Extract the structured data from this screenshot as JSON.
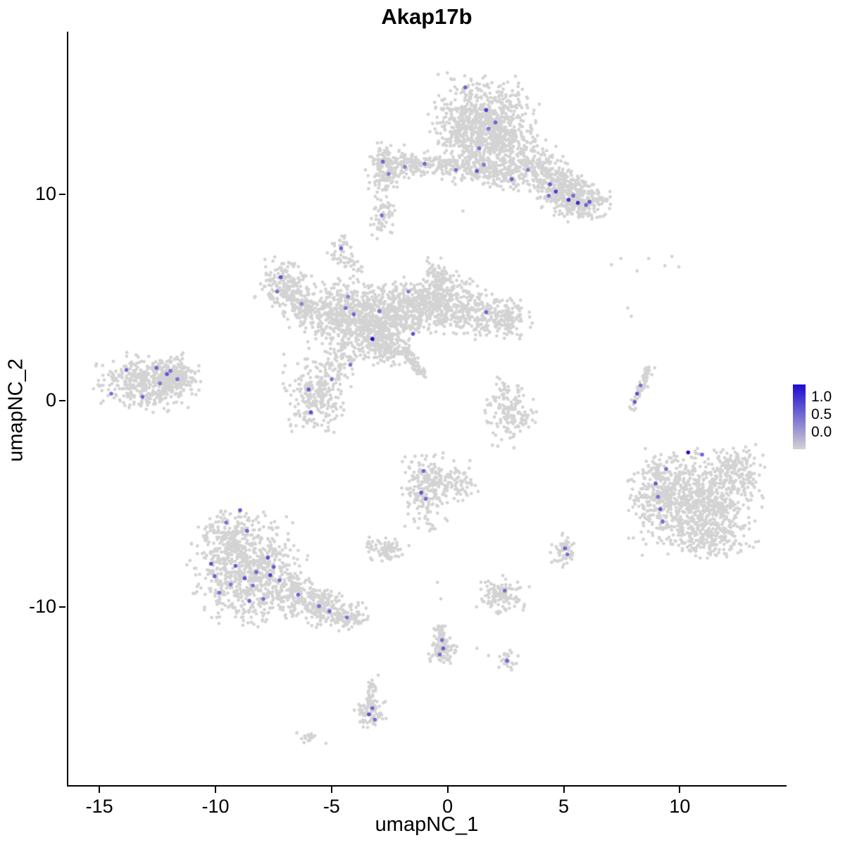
{
  "chart_data": {
    "type": "scatter",
    "title": "Akap17b",
    "xlabel": "umapNC_1",
    "ylabel": "umapNC_2",
    "x_ticks": [
      -15,
      -10,
      -5,
      0,
      5,
      10
    ],
    "y_ticks": [
      10,
      0,
      -10
    ],
    "x_range": [
      -16.4,
      14.6
    ],
    "y_range": [
      -18.7,
      17.9
    ],
    "grid": false,
    "background": "#ffffff",
    "axis_color": "#000000",
    "point_color_default": "#d3d3d3",
    "colorbar": {
      "low_color": "#d3d3d3",
      "high_color": "#1d0bd1",
      "labels": [
        {
          "text": "1.0",
          "f": 0.2
        },
        {
          "text": "0.5",
          "f": 0.47
        },
        {
          "text": "0.0",
          "f": 0.74
        }
      ]
    },
    "clusters": [
      {
        "c": [
          1.5,
          13.7
        ],
        "s": [
          1.05,
          0.95
        ],
        "n": 650
      },
      {
        "c": [
          2.5,
          12.4
        ],
        "s": [
          0.75,
          0.65
        ],
        "n": 220
      },
      {
        "c": [
          0.6,
          12.9
        ],
        "s": [
          0.5,
          0.6
        ],
        "n": 120
      },
      {
        "c": [
          3.8,
          11.3
        ],
        "s": [
          0.55,
          0.5
        ],
        "n": 150
      },
      {
        "c": [
          4.8,
          10.4
        ],
        "s": [
          0.55,
          0.5
        ],
        "n": 200
      },
      {
        "c": [
          5.6,
          9.7
        ],
        "s": [
          0.6,
          0.45
        ],
        "n": 260
      },
      {
        "c": [
          -2.7,
          11.3
        ],
        "s": [
          0.35,
          0.55
        ],
        "n": 140
      },
      {
        "c": [
          -1.8,
          11.45
        ],
        "s": [
          0.5,
          0.3
        ],
        "n": 90
      },
      {
        "c": [
          -0.8,
          11.5
        ],
        "s": [
          0.45,
          0.28
        ],
        "n": 60
      },
      {
        "c": [
          0.3,
          11.25
        ],
        "s": [
          0.5,
          0.35
        ],
        "n": 70
      },
      {
        "c": [
          1.4,
          11.3
        ],
        "s": [
          0.5,
          0.4
        ],
        "n": 110
      },
      {
        "c": [
          2.4,
          11.0
        ],
        "s": [
          0.45,
          0.4
        ],
        "n": 90
      },
      {
        "c": [
          -2.85,
          8.8
        ],
        "s": [
          0.28,
          0.5
        ],
        "n": 55
      },
      {
        "c": [
          -4.6,
          7.3
        ],
        "s": [
          0.3,
          0.38
        ],
        "n": 45
      },
      {
        "c": [
          -7.1,
          5.6
        ],
        "s": [
          0.55,
          0.6
        ],
        "n": 170
      },
      {
        "c": [
          -6.3,
          4.6
        ],
        "s": [
          0.5,
          0.5
        ],
        "n": 110
      },
      {
        "c": [
          -4.9,
          4.3
        ],
        "s": [
          0.75,
          0.75
        ],
        "n": 280
      },
      {
        "c": [
          -3.4,
          3.9
        ],
        "s": [
          0.9,
          0.85
        ],
        "n": 480
      },
      {
        "c": [
          -1.6,
          4.6
        ],
        "s": [
          0.85,
          0.6
        ],
        "n": 330
      },
      {
        "c": [
          -0.2,
          4.8
        ],
        "s": [
          0.8,
          0.6
        ],
        "n": 240
      },
      {
        "c": [
          -0.5,
          5.9
        ],
        "s": [
          0.4,
          0.45
        ],
        "n": 90
      },
      {
        "c": [
          1.4,
          4.1
        ],
        "s": [
          0.8,
          0.5
        ],
        "n": 200
      },
      {
        "c": [
          2.6,
          3.9
        ],
        "s": [
          0.45,
          0.45
        ],
        "n": 90
      },
      {
        "c": [
          -2.9,
          2.8
        ],
        "s": [
          0.6,
          0.5
        ],
        "n": 190
      },
      {
        "c": [
          -5.7,
          0.3
        ],
        "s": [
          0.65,
          0.85
        ],
        "n": 260
      },
      {
        "c": [
          -4.7,
          1.9
        ],
        "s": [
          0.4,
          0.55
        ],
        "n": 70
      },
      {
        "c": [
          -13.0,
          0.9
        ],
        "s": [
          1.0,
          0.62
        ],
        "n": 420
      },
      {
        "c": [
          -11.9,
          1.2
        ],
        "s": [
          0.45,
          0.4
        ],
        "n": 160
      },
      {
        "c": [
          2.6,
          -0.6
        ],
        "s": [
          0.5,
          0.75
        ],
        "n": 150
      },
      {
        "c": [
          10.6,
          -4.9
        ],
        "s": [
          1.25,
          1.15
        ],
        "n": 850
      },
      {
        "c": [
          9.0,
          -4.3
        ],
        "s": [
          0.4,
          0.8
        ],
        "n": 130
      },
      {
        "c": [
          12.3,
          -3.4
        ],
        "s": [
          0.6,
          0.55
        ],
        "n": 140
      },
      {
        "c": [
          11.3,
          -6.7
        ],
        "s": [
          0.7,
          0.45
        ],
        "n": 120
      },
      {
        "c": [
          -8.6,
          -8.3
        ],
        "s": [
          1.15,
          1.15
        ],
        "n": 760
      },
      {
        "c": [
          -9.3,
          -6.5
        ],
        "s": [
          0.6,
          0.6
        ],
        "n": 150
      },
      {
        "c": [
          -6.4,
          -9.5
        ],
        "s": [
          0.6,
          0.5
        ],
        "n": 150
      },
      {
        "c": [
          -5.3,
          -10.1
        ],
        "s": [
          0.5,
          0.4
        ],
        "n": 120
      },
      {
        "c": [
          -4.3,
          -10.4
        ],
        "s": [
          0.45,
          0.35
        ],
        "n": 90
      },
      {
        "c": [
          -0.9,
          -4.3
        ],
        "s": [
          0.5,
          0.85
        ],
        "n": 210
      },
      {
        "c": [
          0.2,
          -4.0
        ],
        "s": [
          0.5,
          0.4
        ],
        "n": 80
      },
      {
        "c": [
          -2.6,
          -7.2
        ],
        "s": [
          0.4,
          0.3
        ],
        "n": 80
      },
      {
        "c": [
          5.0,
          -7.3
        ],
        "s": [
          0.27,
          0.38
        ],
        "n": 55
      },
      {
        "c": [
          2.3,
          -9.4
        ],
        "s": [
          0.5,
          0.4
        ],
        "n": 120
      },
      {
        "c": [
          -0.3,
          -12.1
        ],
        "s": [
          0.28,
          0.35
        ],
        "n": 70
      },
      {
        "c": [
          2.5,
          -12.6
        ],
        "s": [
          0.22,
          0.26
        ],
        "n": 30
      },
      {
        "c": [
          -3.4,
          -15.1
        ],
        "s": [
          0.3,
          0.38
        ],
        "n": 70
      },
      {
        "c": [
          -6.0,
          -16.3
        ],
        "s": [
          0.3,
          0.15
        ],
        "n": 16
      }
    ],
    "streaks": [
      {
        "p1": [
          -2.0,
          2.5
        ],
        "p2": [
          -1.1,
          1.2
        ],
        "w": 0.12,
        "n": 70
      },
      {
        "p1": [
          7.9,
          -0.4
        ],
        "p2": [
          8.6,
          1.6
        ],
        "w": 0.1,
        "n": 60
      },
      {
        "p1": [
          -0.45,
          -10.8
        ],
        "p2": [
          -0.25,
          -11.8
        ],
        "w": 0.12,
        "n": 40
      },
      {
        "p1": [
          -3.25,
          -13.7
        ],
        "p2": [
          -3.45,
          -14.8
        ],
        "w": 0.13,
        "n": 45
      },
      {
        "p1": [
          -4.3,
          6.9
        ],
        "p2": [
          -3.7,
          6.3
        ],
        "w": 0.1,
        "n": 15
      }
    ],
    "singles": [
      [
        7.0,
        6.6
      ],
      [
        7.4,
        6.9
      ],
      [
        8.6,
        6.9
      ],
      [
        9.3,
        6.55
      ],
      [
        9.9,
        6.5
      ],
      [
        8.1,
        6.3
      ],
      [
        9.6,
        7.0
      ],
      [
        7.7,
        4.5
      ],
      [
        7.85,
        4.1
      ],
      [
        0.6,
        9.2
      ],
      [
        0.3,
        14.9
      ],
      [
        -3.6,
        11.2
      ],
      [
        -0.6,
        -6.2
      ],
      [
        -0.5,
        -8.8
      ],
      [
        -0.35,
        -9.6
      ],
      [
        1.2,
        -12.0
      ],
      [
        1.7,
        -12.35
      ],
      [
        -3.05,
        -13.3
      ],
      [
        -10.9,
        0.3
      ],
      [
        -14.9,
        0.0
      ],
      [
        2.1,
        -2.2
      ],
      [
        0.9,
        -2.9
      ]
    ],
    "highlights": [
      [
        0.7,
        15.2,
        0.55
      ],
      [
        1.6,
        14.1,
        0.75
      ],
      [
        2.0,
        13.5,
        0.55
      ],
      [
        1.7,
        13.2,
        0.45
      ],
      [
        1.3,
        12.25,
        0.5
      ],
      [
        -2.85,
        11.6,
        0.55
      ],
      [
        -2.6,
        11.0,
        0.45
      ],
      [
        -1.9,
        11.35,
        0.4
      ],
      [
        -1.05,
        11.5,
        0.55
      ],
      [
        0.3,
        11.2,
        0.5
      ],
      [
        1.2,
        11.15,
        0.65
      ],
      [
        1.5,
        11.45,
        0.45
      ],
      [
        2.7,
        10.75,
        0.55
      ],
      [
        3.4,
        11.2,
        0.45
      ],
      [
        4.35,
        10.5,
        0.6
      ],
      [
        4.6,
        10.15,
        0.75
      ],
      [
        4.3,
        9.95,
        0.5
      ],
      [
        5.15,
        9.75,
        0.8
      ],
      [
        5.55,
        9.6,
        0.85
      ],
      [
        5.9,
        9.5,
        0.55
      ],
      [
        5.35,
        9.95,
        0.5
      ],
      [
        6.05,
        9.65,
        0.6
      ],
      [
        -2.9,
        9.0,
        0.5
      ],
      [
        -4.65,
        7.4,
        0.55
      ],
      [
        -7.25,
        6.0,
        0.65
      ],
      [
        -7.4,
        5.3,
        0.5
      ],
      [
        -6.35,
        4.7,
        0.4
      ],
      [
        -4.45,
        4.5,
        0.5
      ],
      [
        -4.1,
        4.2,
        0.55
      ],
      [
        -3.3,
        3.0,
        1.0
      ],
      [
        -1.55,
        3.25,
        0.65
      ],
      [
        -1.75,
        5.3,
        0.45
      ],
      [
        -4.35,
        5.05,
        0.4
      ],
      [
        -3.0,
        4.35,
        0.5
      ],
      [
        1.6,
        4.3,
        0.55
      ],
      [
        -4.25,
        1.75,
        0.5
      ],
      [
        -5.05,
        1.05,
        0.45
      ],
      [
        -6.05,
        0.55,
        0.6
      ],
      [
        -5.95,
        -0.55,
        0.65
      ],
      [
        -13.9,
        1.5,
        0.5
      ],
      [
        -12.6,
        1.6,
        0.55
      ],
      [
        -12.15,
        1.3,
        0.65
      ],
      [
        -11.7,
        1.05,
        0.5
      ],
      [
        -12.45,
        0.85,
        0.45
      ],
      [
        -14.55,
        0.35,
        0.5
      ],
      [
        -13.2,
        0.2,
        0.55
      ],
      [
        -12.0,
        1.45,
        0.5
      ],
      [
        8.0,
        -0.05,
        0.6
      ],
      [
        8.1,
        0.35,
        0.65
      ],
      [
        8.25,
        0.75,
        0.5
      ],
      [
        10.3,
        -2.5,
        1.0
      ],
      [
        10.9,
        -2.6,
        0.55
      ],
      [
        9.35,
        -3.3,
        0.5
      ],
      [
        8.9,
        -4.0,
        0.6
      ],
      [
        9.0,
        -4.65,
        0.5
      ],
      [
        9.1,
        -5.25,
        0.6
      ],
      [
        9.2,
        -5.85,
        0.5
      ],
      [
        -9.0,
        -5.3,
        0.6
      ],
      [
        -9.6,
        -5.9,
        0.5
      ],
      [
        -8.7,
        -6.3,
        0.55
      ],
      [
        -10.25,
        -7.9,
        0.65
      ],
      [
        -10.1,
        -8.5,
        0.55
      ],
      [
        -9.9,
        -9.3,
        0.5
      ],
      [
        -9.2,
        -8.0,
        0.6
      ],
      [
        -8.8,
        -8.6,
        0.65
      ],
      [
        -8.45,
        -8.95,
        0.5
      ],
      [
        -8.3,
        -8.3,
        0.55
      ],
      [
        -7.8,
        -7.6,
        0.65
      ],
      [
        -7.55,
        -8.05,
        0.6
      ],
      [
        -7.7,
        -8.45,
        0.75
      ],
      [
        -7.3,
        -8.7,
        0.5
      ],
      [
        -8.6,
        -9.7,
        0.55
      ],
      [
        -8.0,
        -9.6,
        0.5
      ],
      [
        -9.4,
        -8.9,
        0.45
      ],
      [
        -6.5,
        -9.4,
        0.55
      ],
      [
        -5.6,
        -9.95,
        0.5
      ],
      [
        -5.15,
        -10.2,
        0.55
      ],
      [
        -4.4,
        -10.5,
        0.5
      ],
      [
        -1.1,
        -3.4,
        0.55
      ],
      [
        -1.2,
        -4.45,
        0.65
      ],
      [
        -1.0,
        -4.75,
        0.5
      ],
      [
        5.0,
        -7.15,
        0.55
      ],
      [
        5.1,
        -7.45,
        0.5
      ],
      [
        2.4,
        -9.2,
        0.5
      ],
      [
        -0.3,
        -11.6,
        0.5
      ],
      [
        -0.25,
        -12.0,
        0.6
      ],
      [
        -0.4,
        -12.3,
        0.5
      ],
      [
        2.5,
        -12.6,
        0.55
      ],
      [
        -3.3,
        -14.9,
        0.55
      ],
      [
        -3.45,
        -15.2,
        0.65
      ],
      [
        -3.2,
        -15.45,
        0.5
      ]
    ]
  }
}
